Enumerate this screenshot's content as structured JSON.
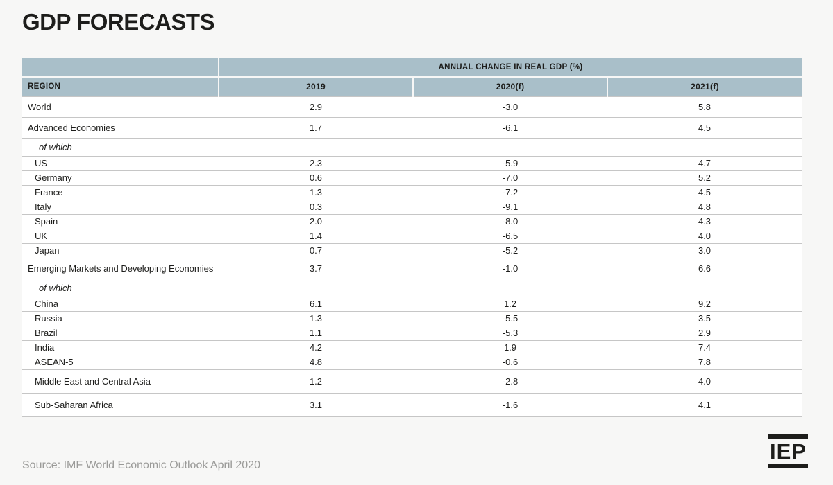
{
  "title": "GDP FORECASTS",
  "source": "Source: IMF World Economic Outlook April 2020",
  "logo": {
    "text": "IEP"
  },
  "colors": {
    "header_bg": "#a9bfc9",
    "page_bg": "#f7f7f6",
    "table_bg": "#ffffff",
    "row_border": "#c6c6c6",
    "text": "#1d1d1b",
    "source_text": "#9a9a98"
  },
  "chart_data": {
    "type": "table",
    "title": "GDP FORECASTS",
    "group_header": "ANNUAL CHANGE IN REAL GDP (%)",
    "columns": [
      "REGION",
      "2019",
      "2020(f)",
      "2021(f)"
    ],
    "rows": [
      {
        "label": "World",
        "style": "major",
        "values": [
          "2.9",
          "-3.0",
          "5.8"
        ]
      },
      {
        "label": "Advanced Economies",
        "style": "major",
        "values": [
          "1.7",
          "-6.1",
          "4.5"
        ]
      },
      {
        "label": "of which",
        "style": "ofwhich",
        "values": [
          "",
          "",
          ""
        ]
      },
      {
        "label": "US",
        "style": "country",
        "values": [
          "2.3",
          "-5.9",
          "4.7"
        ]
      },
      {
        "label": "Germany",
        "style": "country",
        "values": [
          "0.6",
          "-7.0",
          "5.2"
        ]
      },
      {
        "label": "France",
        "style": "country",
        "values": [
          "1.3",
          "-7.2",
          "4.5"
        ]
      },
      {
        "label": "Italy",
        "style": "country",
        "values": [
          "0.3",
          "-9.1",
          "4.8"
        ]
      },
      {
        "label": "Spain",
        "style": "country",
        "values": [
          "2.0",
          "-8.0",
          "4.3"
        ]
      },
      {
        "label": "UK",
        "style": "country",
        "values": [
          "1.4",
          "-6.5",
          "4.0"
        ]
      },
      {
        "label": "Japan",
        "style": "country",
        "values": [
          "0.7",
          "-5.2",
          "3.0"
        ]
      },
      {
        "label": "Emerging Markets and Developing Economies",
        "style": "major",
        "values": [
          "3.7",
          "-1.0",
          "6.6"
        ]
      },
      {
        "label": "of which",
        "style": "ofwhich",
        "values": [
          "",
          "",
          ""
        ]
      },
      {
        "label": "China",
        "style": "country",
        "values": [
          "6.1",
          "1.2",
          "9.2"
        ]
      },
      {
        "label": "Russia",
        "style": "country",
        "values": [
          "1.3",
          "-5.5",
          "3.5"
        ]
      },
      {
        "label": "Brazil",
        "style": "country",
        "values": [
          "1.1",
          "-5.3",
          "2.9"
        ]
      },
      {
        "label": "India",
        "style": "country",
        "values": [
          "4.2",
          "1.9",
          "7.4"
        ]
      },
      {
        "label": "ASEAN-5",
        "style": "country",
        "values": [
          "4.8",
          "-0.6",
          "7.8"
        ]
      },
      {
        "label": "Middle East and Central Asia",
        "style": "country-tall",
        "values": [
          "1.2",
          "-2.8",
          "4.0"
        ]
      },
      {
        "label": "Sub-Saharan Africa",
        "style": "country-tall",
        "values": [
          "3.1",
          "-1.6",
          "4.1"
        ]
      }
    ]
  }
}
